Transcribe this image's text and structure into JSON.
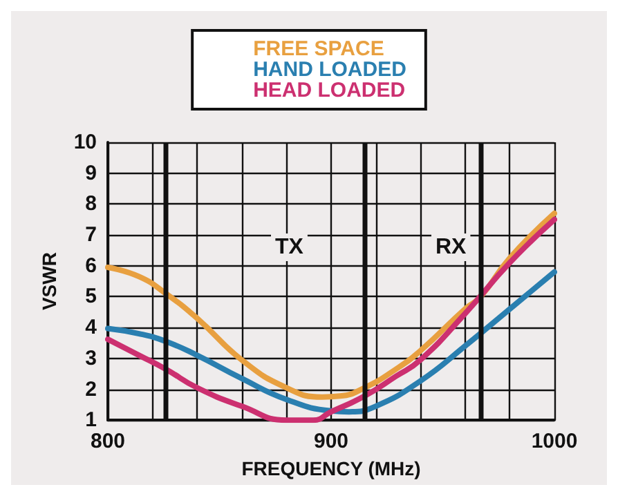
{
  "chart_data": {
    "type": "line",
    "xlabel": "FREQUENCY (MHz)",
    "ylabel": "VSWR",
    "xlim": [
      800,
      1000
    ],
    "xticks": [
      800,
      {
        "value": 820,
        "label": null
      },
      {
        "value": 840,
        "label": null
      },
      {
        "value": 860,
        "label": null
      },
      {
        "value": 880,
        "label": null
      },
      900,
      {
        "value": 920,
        "label": null
      },
      {
        "value": 940,
        "label": null
      },
      {
        "value": 960,
        "label": null
      },
      {
        "value": 980,
        "label": null
      },
      1000
    ],
    "ylim": [
      1,
      10
    ],
    "yticks": [
      1,
      2,
      3,
      4,
      5,
      6,
      7,
      8,
      9,
      10
    ],
    "grid": true,
    "legend": "top",
    "marker": "none",
    "line_style": "solid",
    "series": [
      {
        "name": "FREE SPACE",
        "color": "#e8a040",
        "x": [
          800,
          814,
          826,
          840,
          860,
          880,
          896,
          904,
          915,
          929,
          940,
          960,
          967,
          980,
          1000
        ],
        "values": [
          5.95,
          5.65,
          5.1,
          4.3,
          2.95,
          2.05,
          1.75,
          1.78,
          2.05,
          2.65,
          3.25,
          4.6,
          5.0,
          6.25,
          7.7
        ]
      },
      {
        "name": "HAND LOADED",
        "color": "#2a7fb0",
        "x": [
          800,
          814,
          826,
          840,
          860,
          880,
          900,
          908,
          920,
          940,
          960,
          980,
          1000
        ],
        "values": [
          3.97,
          3.8,
          3.55,
          3.1,
          2.35,
          1.67,
          1.3,
          1.27,
          1.45,
          2.27,
          3.4,
          4.6,
          5.8
        ]
      },
      {
        "name": "HEAD LOADED",
        "color": "#cc3070",
        "x": [
          800,
          814,
          826,
          840,
          860,
          880,
          892,
          900,
          915,
          929,
          940,
          960,
          980,
          1000
        ],
        "values": [
          3.62,
          3.1,
          2.65,
          2.05,
          1.45,
          1.0,
          1.0,
          1.27,
          1.78,
          2.42,
          2.95,
          4.45,
          6.1,
          7.5
        ]
      }
    ],
    "ref_lines": [
      {
        "axis": "x",
        "value": 826,
        "color": "#111111"
      },
      {
        "axis": "x",
        "value": 915,
        "color": "#111111"
      },
      {
        "axis": "x",
        "value": 967,
        "color": "#111111"
      }
    ],
    "annotations": [
      "TX",
      "RX"
    ]
  }
}
